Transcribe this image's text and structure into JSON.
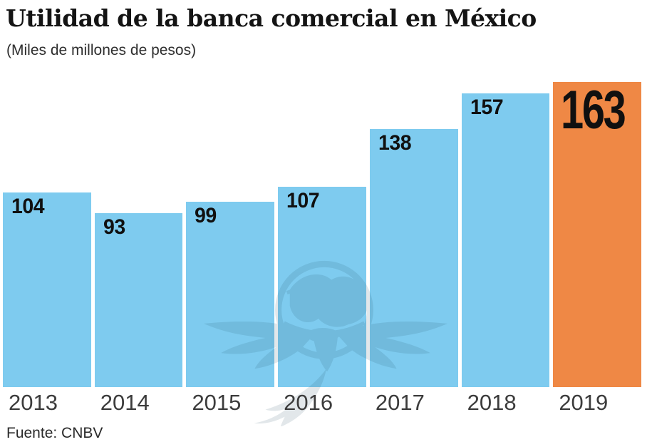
{
  "chart_data": {
    "type": "bar",
    "title": "Utilidad de la banca comercial en México",
    "subtitle": "(Miles de millones de pesos)",
    "source": "Fuente: CNBV",
    "categories": [
      "2013",
      "2014",
      "2015",
      "2016",
      "2017",
      "2018",
      "2019"
    ],
    "values": [
      104,
      93,
      99,
      107,
      138,
      157,
      163
    ],
    "ylim": [
      0,
      172.5
    ],
    "grid": false,
    "legend": false,
    "bar_color": "#7ECBEF",
    "highlight_color": "#EF8845",
    "highlight_category": "2019",
    "value_label_position": "inside-top-left",
    "value_label_color": "#101010",
    "year_label_color": "#3C3C3C",
    "watermark": "winged-globe-newspaper-logo"
  }
}
